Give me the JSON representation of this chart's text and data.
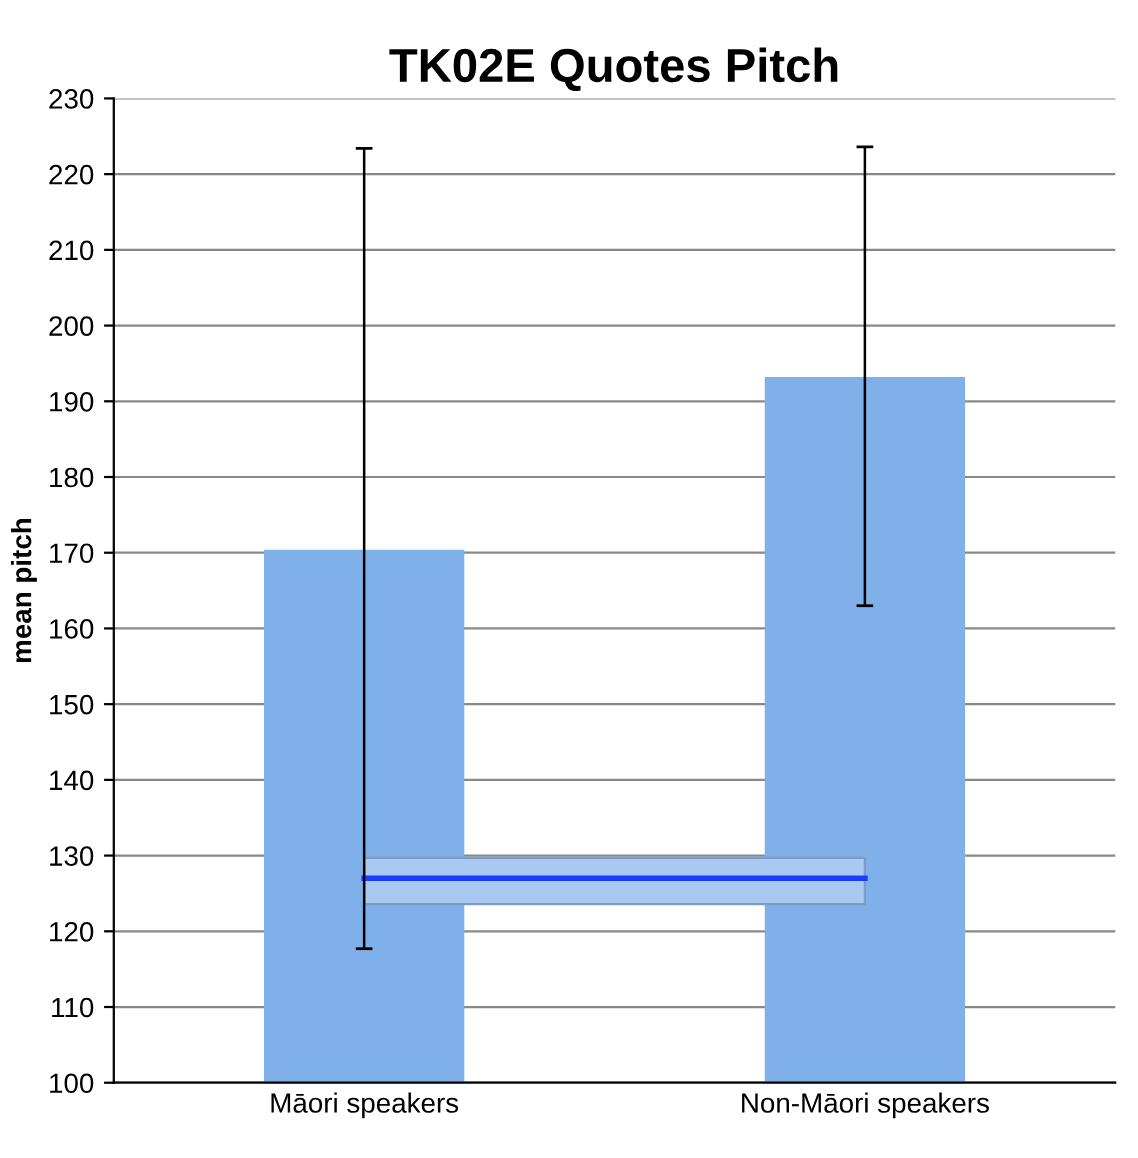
{
  "chart_data": {
    "type": "bar",
    "title": "TK02E Quotes Pitch",
    "ylabel": "mean pitch",
    "categories": [
      "Māori speakers",
      "Non-Māori speakers"
    ],
    "values": [
      170.4,
      193.2
    ],
    "color": "#7fb0ea",
    "errors": [
      [
        117.7,
        223.4
      ],
      [
        163,
        223.6
      ]
    ],
    "ylim": [
      100,
      230
    ],
    "yticks": [
      100,
      110,
      120,
      130,
      140,
      150,
      160,
      170,
      180,
      190,
      200,
      210,
      220,
      230
    ],
    "grid": "y",
    "bands": [
      {
        "axis": "y",
        "from": 123.6,
        "to": 129.7,
        "color": "#a9c9f0"
      }
    ],
    "ref_lines": [
      {
        "axis": "y",
        "value": 127,
        "color": "#1a3cff",
        "line_style": "solid"
      }
    ]
  }
}
